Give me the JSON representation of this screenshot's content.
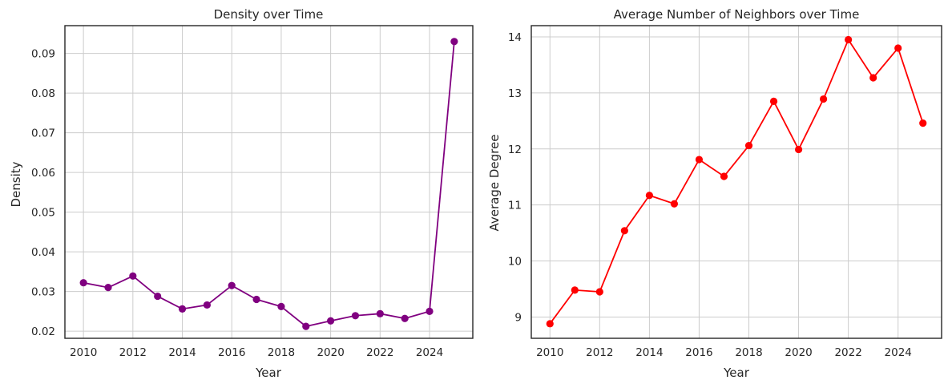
{
  "chart_data": [
    {
      "type": "line",
      "title": "Density over Time",
      "xlabel": "Year",
      "ylabel": "Density",
      "grid": true,
      "x": [
        2010,
        2011,
        2012,
        2013,
        2014,
        2015,
        2016,
        2017,
        2018,
        2019,
        2020,
        2021,
        2022,
        2023,
        2024,
        2025
      ],
      "xlim": [
        2009.25,
        2025.75
      ],
      "ylim": [
        0.0182,
        0.097
      ],
      "xticks": [
        2010,
        2012,
        2014,
        2016,
        2018,
        2020,
        2022,
        2024
      ],
      "yticks": [
        0.02,
        0.03,
        0.04,
        0.05,
        0.06,
        0.07,
        0.08,
        0.09
      ],
      "xtick_labels": [
        "2010",
        "2012",
        "2014",
        "2016",
        "2018",
        "2020",
        "2022",
        "2024"
      ],
      "ytick_labels": [
        "0.02",
        "0.03",
        "0.04",
        "0.05",
        "0.06",
        "0.07",
        "0.08",
        "0.09"
      ],
      "series": [
        {
          "color": "#800080",
          "marker": "circle",
          "values": [
            0.0322,
            0.031,
            0.0339,
            0.0288,
            0.0256,
            0.0266,
            0.0315,
            0.028,
            0.0262,
            0.0212,
            0.0226,
            0.0239,
            0.0244,
            0.0232,
            0.025,
            0.093
          ]
        }
      ]
    },
    {
      "type": "line",
      "title": "Average Number of Neighbors over Time",
      "xlabel": "Year",
      "ylabel": "Average Degree",
      "grid": true,
      "x": [
        2010,
        2011,
        2012,
        2013,
        2014,
        2015,
        2016,
        2017,
        2018,
        2019,
        2020,
        2021,
        2022,
        2023,
        2024,
        2025
      ],
      "xlim": [
        2009.25,
        2025.75
      ],
      "ylim": [
        8.62,
        14.2
      ],
      "xticks": [
        2010,
        2012,
        2014,
        2016,
        2018,
        2020,
        2022,
        2024
      ],
      "yticks": [
        9,
        10,
        11,
        12,
        13,
        14
      ],
      "xtick_labels": [
        "2010",
        "2012",
        "2014",
        "2016",
        "2018",
        "2020",
        "2022",
        "2024"
      ],
      "ytick_labels": [
        "9",
        "10",
        "11",
        "12",
        "13",
        "14"
      ],
      "series": [
        {
          "color": "#ff0000",
          "marker": "circle",
          "values": [
            8.88,
            9.48,
            9.45,
            10.54,
            11.17,
            11.02,
            11.81,
            11.51,
            12.06,
            12.85,
            11.99,
            12.89,
            13.95,
            13.27,
            13.8,
            12.46
          ]
        }
      ]
    }
  ]
}
